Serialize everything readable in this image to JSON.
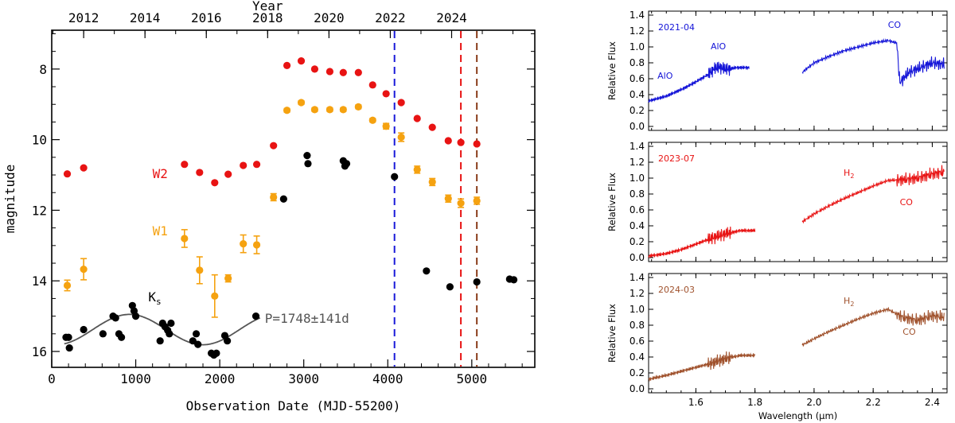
{
  "chart_data": [
    {
      "type": "scatter",
      "xlabel": "Observation Date (MJD-55200)",
      "ylabel": "magnitude",
      "top_axis_label": "Year",
      "xlim": [
        0,
        5750
      ],
      "ylim": [
        16.45,
        6.9
      ],
      "x_ticks": [
        0,
        1000,
        2000,
        3000,
        4000,
        5000
      ],
      "y_ticks": [
        8,
        10,
        12,
        14,
        16
      ],
      "top_ticks": [
        {
          "label": "2012",
          "x": 380
        },
        {
          "label": "2014",
          "x": 1110
        },
        {
          "label": "2016",
          "x": 1840
        },
        {
          "label": "2018",
          "x": 2570
        },
        {
          "label": "2020",
          "x": 3300
        },
        {
          "label": "2022",
          "x": 4030
        },
        {
          "label": "2024",
          "x": 4760
        }
      ],
      "series": [
        {
          "name": "W2",
          "color": "#e81313",
          "points": [
            [
              185,
              10.97
            ],
            [
              380,
              10.8
            ],
            [
              1580,
              10.7
            ],
            [
              1760,
              10.93
            ],
            [
              1940,
              11.22
            ],
            [
              2100,
              10.98
            ],
            [
              2280,
              10.73
            ],
            [
              2440,
              10.7
            ],
            [
              2640,
              10.17
            ],
            [
              2800,
              7.9
            ],
            [
              2970,
              7.77
            ],
            [
              3130,
              8.0
            ],
            [
              3310,
              8.07
            ],
            [
              3470,
              8.1
            ],
            [
              3650,
              8.1
            ],
            [
              3820,
              8.45
            ],
            [
              3980,
              8.7
            ],
            [
              4160,
              8.95
            ],
            [
              4350,
              9.4
            ],
            [
              4530,
              9.65
            ],
            [
              4720,
              10.03
            ],
            [
              4870,
              10.08
            ],
            [
              5060,
              10.12
            ]
          ]
        },
        {
          "name": "W1",
          "color": "#f5a210",
          "points": [
            [
              185,
              14.13,
              0.15
            ],
            [
              380,
              13.67,
              0.3
            ],
            [
              1580,
              12.8,
              0.25
            ],
            [
              1760,
              13.7,
              0.38
            ],
            [
              1940,
              14.43,
              0.6
            ],
            [
              2100,
              13.93,
              0.1
            ],
            [
              2280,
              12.95,
              0.25
            ],
            [
              2440,
              12.98,
              0.25
            ],
            [
              2640,
              11.63,
              0.1
            ],
            [
              2800,
              9.17,
              0.05
            ],
            [
              2970,
              8.95,
              0.05
            ],
            [
              3130,
              9.15,
              0.05
            ],
            [
              3310,
              9.15,
              0.05
            ],
            [
              3470,
              9.15,
              0.05
            ],
            [
              3650,
              9.07,
              0.05
            ],
            [
              3820,
              9.45,
              0.05
            ],
            [
              3980,
              9.62,
              0.08
            ],
            [
              4160,
              9.93,
              0.12
            ],
            [
              4350,
              10.85,
              0.1
            ],
            [
              4530,
              11.2,
              0.1
            ],
            [
              4720,
              11.67,
              0.1
            ],
            [
              4870,
              11.8,
              0.12
            ],
            [
              5060,
              11.73,
              0.1
            ]
          ]
        },
        {
          "name": "Ks",
          "color": "#000000",
          "points": [
            [
              170,
              15.6
            ],
            [
              210,
              15.9
            ],
            [
              200,
              15.6
            ],
            [
              380,
              15.38
            ],
            [
              610,
              15.5
            ],
            [
              730,
              15.0
            ],
            [
              760,
              15.05
            ],
            [
              800,
              15.5
            ],
            [
              830,
              15.6
            ],
            [
              960,
              14.7
            ],
            [
              980,
              14.85
            ],
            [
              1000,
              15.0
            ],
            [
              1290,
              15.7
            ],
            [
              1320,
              15.2
            ],
            [
              1350,
              15.3
            ],
            [
              1380,
              15.4
            ],
            [
              1400,
              15.5
            ],
            [
              1420,
              15.2
            ],
            [
              1680,
              15.7
            ],
            [
              1720,
              15.5
            ],
            [
              1740,
              15.8
            ],
            [
              1900,
              16.05
            ],
            [
              1930,
              16.1
            ],
            [
              1960,
              16.05
            ],
            [
              2060,
              15.55
            ],
            [
              2090,
              15.7
            ],
            [
              2430,
              15.0
            ],
            [
              2760,
              11.68
            ],
            [
              3040,
              10.45
            ],
            [
              3050,
              10.68
            ],
            [
              3470,
              10.6
            ],
            [
              3490,
              10.75
            ],
            [
              3510,
              10.68
            ],
            [
              4080,
              11.05
            ],
            [
              4460,
              13.72
            ],
            [
              4740,
              14.17
            ],
            [
              5060,
              14.03
            ],
            [
              5450,
              13.95
            ],
            [
              5500,
              13.97
            ]
          ]
        }
      ],
      "fit": {
        "label": "P=1748±141d",
        "period": 1748,
        "mean": 15.38,
        "amplitude": 0.43,
        "phase_center": 925,
        "x_range": [
          150,
          2480
        ]
      },
      "vlines": [
        {
          "x": 4080,
          "color": "#1a1ad9"
        },
        {
          "x": 4870,
          "color": "#e81313"
        },
        {
          "x": 5060,
          "color": "#8a3c1a"
        }
      ],
      "series_labels": [
        {
          "text": "W2",
          "color": "#e81313",
          "x": 1200,
          "y": 10.95
        },
        {
          "text": "W1",
          "color": "#f5a210",
          "x": 1200,
          "y": 12.58
        },
        {
          "text": "K",
          "sub": "s",
          "color": "#000000",
          "x": 1150,
          "y": 14.45
        }
      ]
    },
    {
      "type": "line",
      "title": "2021-04",
      "xlabel": "",
      "ylabel": "Relative Flux",
      "xlim": [
        1.44,
        2.45
      ],
      "ylim": [
        -0.05,
        1.45
      ],
      "x_ticks": [
        1.6,
        1.8,
        2.0,
        2.2,
        2.4
      ],
      "y_ticks": [
        0.0,
        0.2,
        0.4,
        0.6,
        0.8,
        1.0,
        1.2,
        1.4
      ],
      "color": "#1414d8",
      "segments": [
        {
          "x": [
            1.44,
            1.5,
            1.56,
            1.6,
            1.64,
            1.66,
            1.68,
            1.7,
            1.74,
            1.78
          ],
          "y": [
            0.32,
            0.38,
            0.48,
            0.56,
            0.65,
            0.72,
            0.75,
            0.72,
            0.74,
            0.74
          ]
        },
        {
          "x": [
            1.96,
            2.0,
            2.05,
            2.1,
            2.15,
            2.2,
            2.25,
            2.28,
            2.29,
            2.32,
            2.36,
            2.4,
            2.44
          ],
          "y": [
            0.68,
            0.8,
            0.88,
            0.95,
            1.0,
            1.05,
            1.08,
            1.05,
            0.55,
            0.68,
            0.74,
            0.8,
            0.78
          ]
        }
      ],
      "annotations": [
        {
          "text": "AlO",
          "x": 1.47,
          "y": 0.6
        },
        {
          "text": "AlO",
          "x": 1.65,
          "y": 0.97
        },
        {
          "text": "CO",
          "x": 2.25,
          "y": 1.24
        }
      ]
    },
    {
      "type": "line",
      "title": "2023-07",
      "xlabel": "",
      "ylabel": "Relative Flux",
      "xlim": [
        1.44,
        2.45
      ],
      "ylim": [
        -0.05,
        1.45
      ],
      "x_ticks": [
        1.6,
        1.8,
        2.0,
        2.2,
        2.4
      ],
      "y_ticks": [
        0.0,
        0.2,
        0.4,
        0.6,
        0.8,
        1.0,
        1.2,
        1.4
      ],
      "color": "#e81313",
      "segments": [
        {
          "x": [
            1.44,
            1.5,
            1.55,
            1.6,
            1.65,
            1.7,
            1.75,
            1.8
          ],
          "y": [
            0.02,
            0.05,
            0.1,
            0.17,
            0.24,
            0.3,
            0.34,
            0.34
          ]
        },
        {
          "x": [
            1.96,
            2.0,
            2.05,
            2.1,
            2.15,
            2.2,
            2.25,
            2.3,
            2.35,
            2.4,
            2.44
          ],
          "y": [
            0.45,
            0.55,
            0.65,
            0.74,
            0.82,
            0.9,
            0.97,
            0.98,
            1.0,
            1.05,
            1.08
          ]
        }
      ],
      "annotations": [
        {
          "text": "H",
          "sub": "2",
          "x": 2.1,
          "y": 1.03
        },
        {
          "text": "CO",
          "x": 2.29,
          "y": 0.66
        }
      ]
    },
    {
      "type": "line",
      "title": "2024-03",
      "xlabel": "Wavelength (μm)",
      "ylabel": "Relative Flux",
      "xlim": [
        1.44,
        2.45
      ],
      "ylim": [
        -0.05,
        1.45
      ],
      "x_ticks": [
        1.6,
        1.8,
        2.0,
        2.2,
        2.4
      ],
      "y_ticks": [
        0.0,
        0.2,
        0.4,
        0.6,
        0.8,
        1.0,
        1.2,
        1.4
      ],
      "color": "#a0522d",
      "segments": [
        {
          "x": [
            1.44,
            1.5,
            1.55,
            1.6,
            1.65,
            1.7,
            1.75,
            1.8
          ],
          "y": [
            0.12,
            0.17,
            0.22,
            0.27,
            0.32,
            0.38,
            0.42,
            0.42
          ]
        },
        {
          "x": [
            1.96,
            2.0,
            2.05,
            2.1,
            2.15,
            2.2,
            2.25,
            2.3,
            2.35,
            2.4,
            2.44
          ],
          "y": [
            0.55,
            0.63,
            0.72,
            0.8,
            0.88,
            0.95,
            1.0,
            0.9,
            0.86,
            0.92,
            0.9
          ]
        }
      ],
      "annotations": [
        {
          "text": "H",
          "sub": "2",
          "x": 2.1,
          "y": 1.07
        },
        {
          "text": "CO",
          "x": 2.3,
          "y": 0.68
        }
      ]
    }
  ]
}
